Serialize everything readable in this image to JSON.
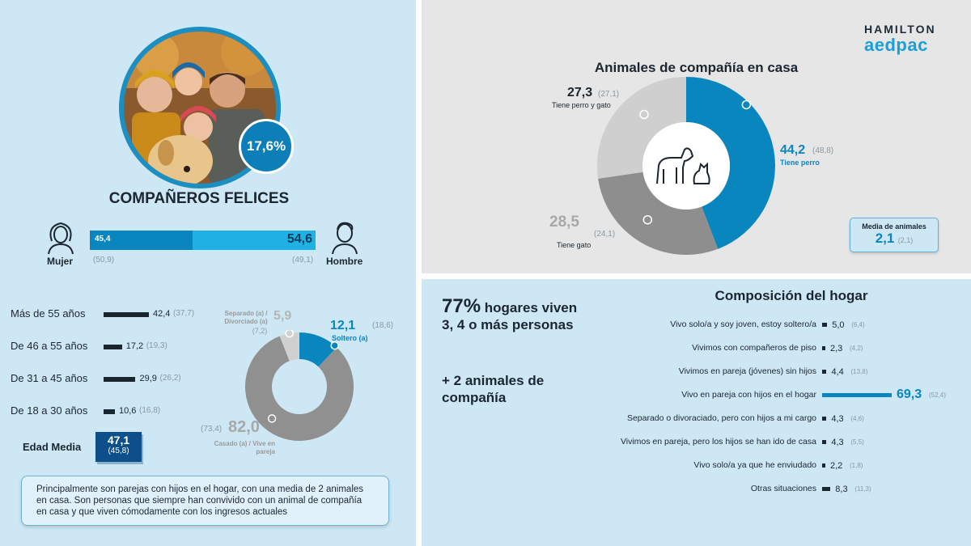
{
  "brand": {
    "line1": "HAMILTON",
    "line2": "aedpac"
  },
  "hero": {
    "percentage": "17,6%"
  },
  "main_title": "COMPAÑEROS FELICES",
  "gender": {
    "mujer_label": "Mujer",
    "hombre_label": "Hombre",
    "mujer_value": 45.4,
    "hombre_value": 54.6,
    "mujer_text": "45,4",
    "hombre_text": "54,6",
    "mujer_prev": "(50,9)",
    "hombre_prev": "(49,1)",
    "colors": {
      "mujer": "#0a86bf",
      "hombre": "#1fb1e3"
    }
  },
  "age": {
    "rows": [
      {
        "label": "Más de 55 años",
        "value": 42.4,
        "text": "42,4",
        "prev": "(37,7)"
      },
      {
        "label": "De 46 a 55 años",
        "value": 17.2,
        "text": "17,2",
        "prev": "(19,3)"
      },
      {
        "label": "De 31 a 45 años",
        "value": 29.9,
        "text": "29,9",
        "prev": "(26,2)"
      },
      {
        "label": "De 18 a 30 años",
        "value": 10.6,
        "text": "10,6",
        "prev": "(16,8)"
      }
    ],
    "edad_media_label": "Edad Media",
    "edad_media_value": "47,1",
    "edad_media_prev": "(45,8)"
  },
  "civil": {
    "separado_label": "Separado (a) / Divorciado (a)",
    "separado_value": "5,9",
    "separado_prev": "(7,2)",
    "soltero_label": "Soltero (a)",
    "soltero_value": "12,1",
    "soltero_prev": "(18,6)",
    "casado_label": "Casado (a) / Vive en pareja",
    "casado_value": "82,0",
    "casado_prev": "(73,4)"
  },
  "summary": "Principalmente son parejas con hijos en el hogar, con una media de 2 animales en casa. Son personas que siempre han convivido con un animal de compañía en casa  y que viven cómodamente con los ingresos actuales",
  "pets": {
    "title": "Animales de compañía en casa",
    "perro_value": "44,2",
    "perro_prev": "(48,8)",
    "perro_label": "Tiene perro",
    "gato_value": "28,5",
    "gato_prev": "(24,1)",
    "gato_label": "Tiene gato",
    "ambos_value": "27,3",
    "ambos_prev": "(27,1)",
    "ambos_label": "Tiene perro y gato",
    "media_label": "Media de animales",
    "media_value": "2,1",
    "media_prev": "(2,1)"
  },
  "household": {
    "stat_big": "77%",
    "stat_rest": "hogares viven 3, 4 o más personas",
    "stat2": "+ 2 animales de compañía",
    "title": "Composición del hogar",
    "rows": [
      {
        "label": "Vivo solo/a y soy joven, estoy soltero/a",
        "value": 5.0,
        "text": "5,0",
        "prev": "(6,4)"
      },
      {
        "label": "Vivimos con compañeros de piso",
        "value": 2.3,
        "text": "2,3",
        "prev": "(4,2)"
      },
      {
        "label": "Vivimos en pareja (jóvenes) sin hijos",
        "value": 4.4,
        "text": "4,4",
        "prev": "(13,8)"
      },
      {
        "label": "Vivo en pareja con hijos en el hogar",
        "value": 69.3,
        "text": "69,3",
        "prev": "(52,4)",
        "highlight": true
      },
      {
        "label": "Separado o divoraciado, pero con hijos a mi cargo",
        "value": 4.3,
        "text": "4,3",
        "prev": "(4,6)"
      },
      {
        "label": "Vivimos en pareja, pero los hijos se han ido de casa",
        "value": 4.3,
        "text": "4,3",
        "prev": "(5,5)"
      },
      {
        "label": "Vivo solo/a ya que he enviudado",
        "value": 2.2,
        "text": "2,2",
        "prev": "(1,8)"
      },
      {
        "label": "Otras situaciones",
        "value": 8.3,
        "text": "8,3",
        "prev": "(11,3)"
      }
    ]
  },
  "chart_data": [
    {
      "type": "bar",
      "categories": [
        "Mujer",
        "Hombre"
      ],
      "values": [
        45.4,
        54.6
      ],
      "previous": [
        50.9,
        49.1
      ]
    },
    {
      "type": "bar",
      "categories": [
        "Más de 55 años",
        "De 46 a 55 años",
        "De 31 a 45 años",
        "De 18 a 30 años"
      ],
      "values": [
        42.4,
        17.2,
        29.9,
        10.6
      ],
      "previous": [
        37.7,
        19.3,
        26.2,
        16.8
      ]
    },
    {
      "type": "pie",
      "categories": [
        "Soltero (a)",
        "Casado (a) / Vive en pareja",
        "Separado (a) / Divorciado (a)"
      ],
      "values": [
        12.1,
        82.0,
        5.9
      ],
      "previous": [
        18.6,
        73.4,
        7.2
      ],
      "colors": [
        "#0a86bf",
        "#909090",
        "#d0d0d0"
      ]
    },
    {
      "type": "pie",
      "title": "Animales de compañía en casa",
      "categories": [
        "Tiene perro",
        "Tiene gato",
        "Tiene perro y gato"
      ],
      "values": [
        44.2,
        28.5,
        27.3
      ],
      "previous": [
        48.8,
        24.1,
        27.1
      ],
      "colors": [
        "#0a86bf",
        "#8e8e8e",
        "#cfcfcf"
      ]
    },
    {
      "type": "bar",
      "title": "Composición del hogar",
      "categories": [
        "Vivo solo/a y soy joven, estoy soltero/a",
        "Vivimos con compañeros de piso",
        "Vivimos en pareja (jóvenes) sin hijos",
        "Vivo en pareja con hijos en el hogar",
        "Separado o divoraciado, pero con hijos a mi cargo",
        "Vivimos en pareja, pero los hijos se han ido de casa",
        "Vivo solo/a ya que he enviudado",
        "Otras situaciones"
      ],
      "values": [
        5.0,
        2.3,
        4.4,
        69.3,
        4.3,
        4.3,
        2.2,
        8.3
      ],
      "previous": [
        6.4,
        4.2,
        13.8,
        52.4,
        4.6,
        5.5,
        1.8,
        11.3
      ]
    }
  ]
}
